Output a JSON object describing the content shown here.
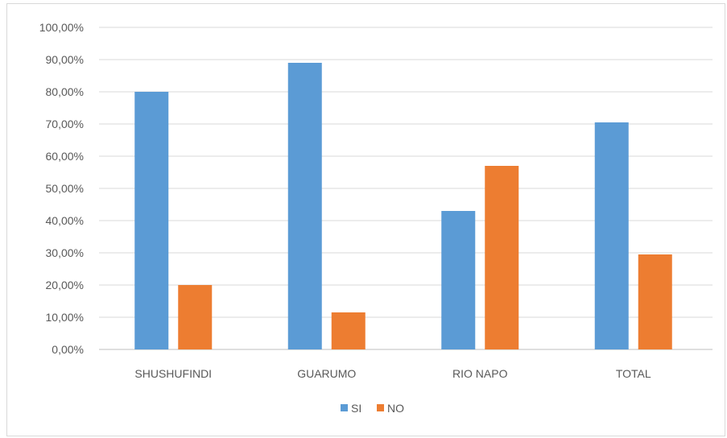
{
  "chart_data": {
    "type": "bar",
    "categories": [
      "SHUSHUFINDI",
      "GUARUMO",
      "RIO NAPO",
      "TOTAL"
    ],
    "series": [
      {
        "name": "SI",
        "values": [
          80.0,
          89.0,
          43.0,
          70.5
        ],
        "color": "#5b9bd5"
      },
      {
        "name": "NO",
        "values": [
          20.0,
          11.5,
          57.0,
          29.5
        ],
        "color": "#ed7d31"
      }
    ],
    "yticks": [
      "0,00%",
      "10,00%",
      "20,00%",
      "30,00%",
      "40,00%",
      "50,00%",
      "60,00%",
      "70,00%",
      "80,00%",
      "90,00%",
      "100,00%"
    ],
    "ylim": [
      0,
      100
    ],
    "grid": true,
    "legend_position": "bottom",
    "gridline_color": "#d9d9d9",
    "axis_line_color": "#bfbfbf",
    "text_color": "#595959"
  }
}
